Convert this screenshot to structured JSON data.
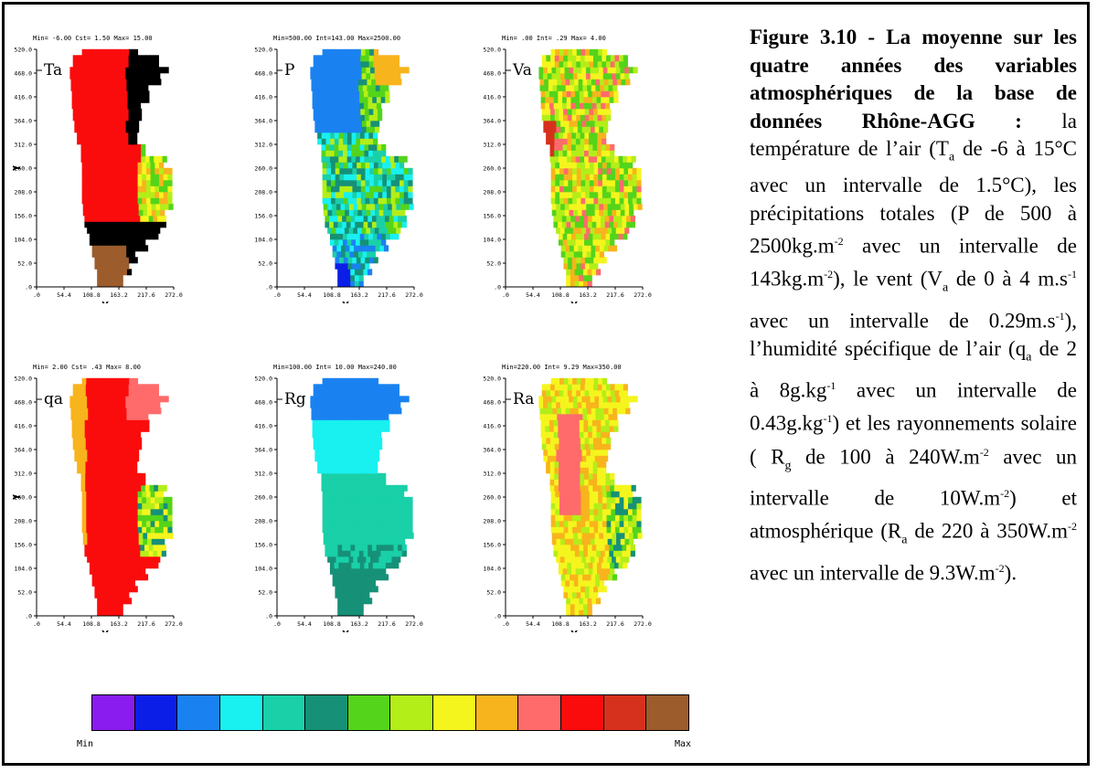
{
  "colorbar": {
    "colors": [
      "#8a1cf0",
      "#0b1ee8",
      "#1a82f0",
      "#19f0f0",
      "#19d0a8",
      "#169178",
      "#54d41a",
      "#b3ee19",
      "#f5f51e",
      "#f8b41c",
      "#ff6b6b",
      "#fb0c0c",
      "#d6311c",
      "#9c5c2c"
    ],
    "min_label": "Min",
    "max_label": "Max"
  },
  "panels": [
    {
      "id": "ta",
      "label": "Ta",
      "header": "Min= -6.00   Cst=  1.50   Max= 15.00",
      "yticks": [
        "520.0",
        "468.0",
        "416.0",
        "364.0",
        "312.0",
        "260.0",
        "208.0",
        "156.0",
        "104.0",
        "52.0",
        ".0"
      ],
      "xticks": [
        ".0",
        "54.4",
        "108.8",
        "163.2",
        "217.6",
        "272.0"
      ],
      "xlabel": "X",
      "ylabel": "Y"
    },
    {
      "id": "p",
      "label": "P",
      "header": "Min=500.00  Int=143.00  Max=2500.00",
      "yticks": [
        "520.0",
        "468.0",
        "416.0",
        "364.0",
        "312.0",
        "260.0",
        "208.0",
        "156.0",
        "104.0",
        "52.0",
        ".0"
      ],
      "xticks": [
        ".0",
        "54.4",
        "108.8",
        "163.2",
        "217.6",
        "272.0"
      ],
      "xlabel": "X",
      "ylabel": ""
    },
    {
      "id": "va",
      "label": "Va",
      "header": "Min=   .00   Int=   .29   Max=  4.00",
      "yticks": [
        "520.0",
        "468.0",
        "416.0",
        "364.0",
        "312.0",
        "260.0",
        "208.0",
        "156.0",
        "104.0",
        "52.0",
        ".0"
      ],
      "xticks": [
        ".0",
        "54.4",
        "108.8",
        "163.2",
        "217.6",
        "272.0"
      ],
      "xlabel": "X",
      "ylabel": ""
    },
    {
      "id": "qa",
      "label": "qa",
      "header": "Min=  2.00   Cst=   .43   Max=  8.00",
      "yticks": [
        "520.0",
        "468.0",
        "416.0",
        "364.0",
        "312.0",
        "260.0",
        "208.0",
        "156.0",
        "104.0",
        "52.0",
        ".0"
      ],
      "xticks": [
        ".0",
        "54.4",
        "108.8",
        "163.2",
        "217.6",
        "272.0"
      ],
      "xlabel": "X",
      "ylabel": "Y"
    },
    {
      "id": "rg",
      "label": "Rg",
      "header": "Min=100.00  Int= 10.00  Max=240.00",
      "yticks": [
        "520.0",
        "468.0",
        "416.0",
        "364.0",
        "312.0",
        "260.0",
        "208.0",
        "156.0",
        "104.0",
        "52.0",
        ".0"
      ],
      "xticks": [
        ".0",
        "54.4",
        "108.8",
        "163.2",
        "217.6",
        "272.0"
      ],
      "xlabel": "X",
      "ylabel": ""
    },
    {
      "id": "ra",
      "label": "Ra",
      "header": "Min=220.00  Int=  9.29  Max=350.00",
      "yticks": [
        "520.0",
        "468.0",
        "416.0",
        "364.0",
        "312.0",
        "260.0",
        "208.0",
        "156.0",
        "104.0",
        "52.0",
        ".0"
      ],
      "xticks": [
        ".0",
        "54.4",
        "108.8",
        "163.2",
        "217.6",
        "272.0"
      ],
      "xlabel": "X",
      "ylabel": ""
    }
  ],
  "caption": {
    "title": "Figure 3.10 - La moyenne sur les quatre années des variables atmosphériques de la base de données Rhône-AGG :",
    "l1": " la température de l’air (T",
    "s1": "a",
    "l2": " de -6 à 15°C avec un intervalle de 1.5°C), les précipitations totales (P de 500 à 2500kg.m",
    "p1": "-2",
    "l3": " avec un intervalle de 143kg.m",
    "p2": "-2",
    "l4": "), le vent (V",
    "s2": "a",
    "l5": " de 0 à 4 m.s",
    "p3": "-1",
    "l6": " avec un intervalle de 0.29m.s",
    "p4": "-1",
    "l7": "), l’humidité spécifique de l’air (q",
    "s3": "a",
    "l8": " de 2 à 8g.kg",
    "p5": "-1",
    "l9": " avec un intervalle de 0.43g.kg",
    "p6": "-1",
    "l10": ") et les rayonnements solaire ( R",
    "s4": "g",
    "l11": " de 100 à 240W.m",
    "p7": "-2",
    "l12": " avec un intervalle de 10W.m",
    "p8": "-2",
    "l13": ") et atmosphérique (R",
    "s5": "a",
    "l14": " de 220 à 350W.m",
    "p9": "-2",
    "l15": " avec un intervalle de 9.3W.m",
    "p10": "-2",
    "l16": ")."
  }
}
